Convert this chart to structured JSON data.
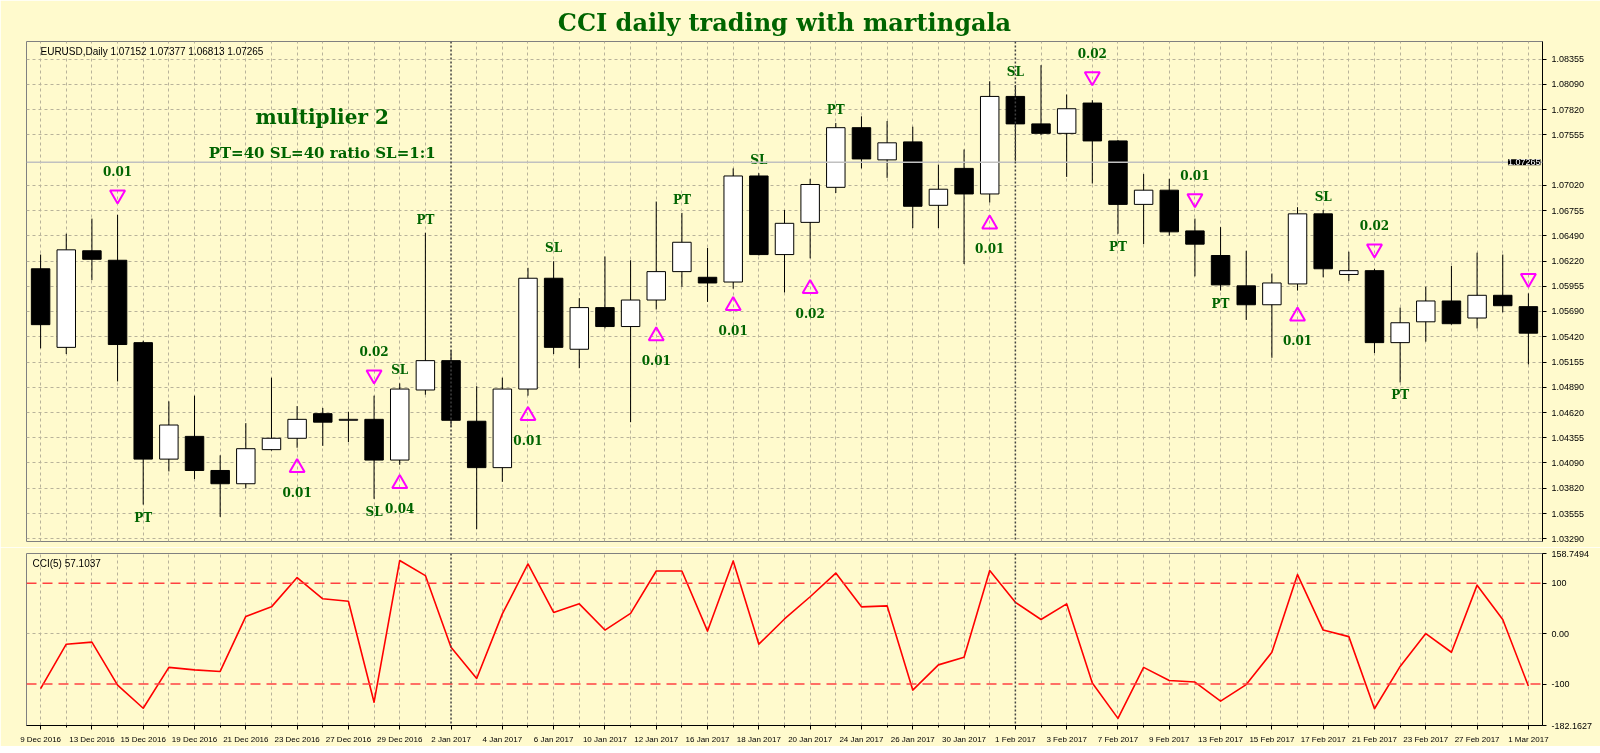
{
  "chart_data": [
    {
      "type": "candlestick",
      "title": "CCI daily trading with martingala",
      "subtitle": "EURUSD,Daily 1.07152 1.07377 1.06813 1.07265",
      "annotations": [
        "multiplier 2",
        "PT=40 SL=40 ratio SL=1:1",
        {
          "text": "0.01",
          "y": 1.0692
        },
        {
          "text": "0.01",
          "x": "23 Dec 2016",
          "y": 1.0404
        },
        {
          "text": "0.02",
          "y": 1.0502
        },
        {
          "text": "0.04",
          "x": "29 Dec 2016",
          "y": 1.0387
        },
        {
          "text": "0.01",
          "y": 1.0459
        },
        {
          "text": "0.01",
          "x": "12 Jan 2017",
          "y": 1.0543
        },
        {
          "text": "0.01",
          "y": 1.0575
        },
        {
          "text": "0.02",
          "x": "20 Jan 2017",
          "y": 1.0593
        },
        {
          "text": "0.01",
          "y": 1.0661
        },
        {
          "text": "0.02",
          "y": 1.0817
        },
        {
          "text": "0.01",
          "y": 1.0688
        },
        {
          "text": "0.01",
          "y": 1.0564
        },
        {
          "text": "0.02",
          "x": "21 Feb 2017",
          "y": 1.0635
        },
        {
          "text": "PT",
          "x": "15 Dec 2016",
          "y": 1.0365
        },
        {
          "text": "SL",
          "y": 1.0371
        },
        {
          "text": "SL",
          "x": "29 Dec 2016",
          "y": 1.0493
        },
        {
          "text": "PT",
          "y": 1.0652
        },
        {
          "text": "SL",
          "x": "6 Jan 2017",
          "y": 1.0622
        },
        {
          "text": "PT",
          "y": 1.0673
        },
        {
          "text": "SL",
          "x": "18 Jan 2017",
          "y": 1.0715
        },
        {
          "text": "PT",
          "y": 1.0768
        },
        {
          "text": "SL",
          "x": "1 Feb 2017",
          "y": 1.0808
        },
        {
          "text": "PT",
          "x": "7 Feb 2017",
          "y": 1.0651
        },
        {
          "text": "PT",
          "x": "13 Feb 2017",
          "y": 1.0591
        },
        {
          "text": "SL",
          "x": "17 Feb 2017",
          "y": 1.0676
        },
        {
          "text": "PT",
          "y": 1.0494
        }
      ],
      "categories": [
        "9 Dec 2016",
        null,
        "13 Dec 2016",
        null,
        "15 Dec 2016",
        null,
        "19 Dec 2016",
        null,
        "21 Dec 2016",
        null,
        "23 Dec 2016",
        null,
        "27 Dec 2016",
        null,
        "29 Dec 2016",
        null,
        "2 Jan 2017",
        null,
        "4 Jan 2017",
        null,
        "6 Jan 2017",
        null,
        "10 Jan 2017",
        null,
        "12 Jan 2017",
        null,
        "16 Jan 2017",
        null,
        "18 Jan 2017",
        null,
        "20 Jan 2017",
        null,
        "24 Jan 2017",
        null,
        "26 Jan 2017",
        null,
        "30 Jan 2017",
        null,
        "1 Feb 2017",
        null,
        "3 Feb 2017",
        null,
        "7 Feb 2017",
        null,
        "9 Feb 2017",
        null,
        "13 Feb 2017",
        null,
        "15 Feb 2017",
        null,
        "17 Feb 2017",
        null,
        "21 Feb 2017",
        null,
        "23 Feb 2017",
        null,
        "27 Feb 2017",
        null,
        "1 Mar 2017"
      ],
      "ohlc": [
        [
          1.0614,
          1.0629,
          1.053,
          1.0555
        ],
        [
          1.0531,
          1.0651,
          1.0524,
          1.0634
        ],
        [
          1.0633,
          1.0667,
          1.0602,
          1.0624
        ],
        [
          1.0623,
          1.0671,
          1.0495,
          1.0534
        ],
        [
          1.0536,
          1.0538,
          1.0365,
          1.0413
        ],
        [
          1.0413,
          1.0474,
          1.04,
          1.0449
        ],
        [
          1.0437,
          1.048,
          1.0392,
          1.0401
        ],
        [
          1.0401,
          1.0417,
          1.0352,
          1.0387
        ],
        [
          1.0387,
          1.0451,
          1.0382,
          1.0424
        ],
        [
          1.0423,
          1.0499,
          1.0422,
          1.0435
        ],
        [
          1.0435,
          1.0469,
          1.0425,
          1.0455
        ],
        [
          1.0461,
          1.0467,
          1.0427,
          1.0452
        ],
        [
          1.0454,
          1.0463,
          1.0431,
          1.0455
        ],
        [
          1.0455,
          1.048,
          1.0371,
          1.0412
        ],
        [
          1.0412,
          1.0493,
          1.0407,
          1.0487
        ],
        [
          1.0486,
          1.0652,
          1.0481,
          1.0517
        ],
        [
          1.0517,
          1.0528,
          1.0447,
          1.0454
        ],
        [
          1.0453,
          1.049,
          1.0339,
          1.0404
        ],
        [
          1.0404,
          1.0499,
          1.0389,
          1.0487
        ],
        [
          1.0487,
          1.0615,
          1.048,
          1.0604
        ],
        [
          1.0604,
          1.0622,
          1.0524,
          1.0531
        ],
        [
          1.0529,
          1.0583,
          1.0509,
          1.0573
        ],
        [
          1.0573,
          1.0627,
          1.0551,
          1.0553
        ],
        [
          1.0553,
          1.0623,
          1.0452,
          1.0581
        ],
        [
          1.0581,
          1.0685,
          1.0571,
          1.0611
        ],
        [
          1.0611,
          1.0673,
          1.0595,
          1.0642
        ],
        [
          1.0605,
          1.0636,
          1.0579,
          1.0599
        ],
        [
          1.06,
          1.072,
          1.0593,
          1.0712
        ],
        [
          1.0712,
          1.0715,
          1.0628,
          1.0629
        ],
        [
          1.0629,
          1.0676,
          1.0589,
          1.0662
        ],
        [
          1.0663,
          1.0709,
          1.0625,
          1.0703
        ],
        [
          1.07,
          1.0768,
          1.0694,
          1.0763
        ],
        [
          1.0763,
          1.0775,
          1.072,
          1.073
        ],
        [
          1.0729,
          1.077,
          1.071,
          1.0747
        ],
        [
          1.0748,
          1.0764,
          1.0657,
          1.068
        ],
        [
          1.0681,
          1.0724,
          1.0657,
          1.0698
        ],
        [
          1.072,
          1.074,
          1.0619,
          1.0693
        ],
        [
          1.0693,
          1.0812,
          1.0684,
          1.0796
        ],
        [
          1.0796,
          1.0808,
          1.0728,
          1.0767
        ],
        [
          1.0767,
          1.0829,
          1.0755,
          1.0757
        ],
        [
          1.0757,
          1.0798,
          1.0711,
          1.0783
        ],
        [
          1.0789,
          1.0792,
          1.0704,
          1.0749
        ],
        [
          1.0749,
          1.075,
          1.0651,
          1.0682
        ],
        [
          1.0682,
          1.0714,
          1.064,
          1.0697
        ],
        [
          1.0697,
          1.0709,
          1.0649,
          1.0653
        ],
        [
          1.0654,
          1.0667,
          1.0606,
          1.064
        ],
        [
          1.0628,
          1.0658,
          1.0591,
          1.0597
        ],
        [
          1.0596,
          1.0633,
          1.056,
          1.0576
        ],
        [
          1.0576,
          1.0609,
          1.052,
          1.0599
        ],
        [
          1.0598,
          1.0679,
          1.0591,
          1.0672
        ],
        [
          1.0672,
          1.0676,
          1.0605,
          1.0614
        ],
        [
          1.0608,
          1.0632,
          1.0601,
          1.0612
        ],
        [
          1.0612,
          1.0614,
          1.0525,
          1.0536
        ],
        [
          1.0536,
          1.0573,
          1.0494,
          1.0557
        ],
        [
          1.0558,
          1.0595,
          1.0537,
          1.058
        ],
        [
          1.058,
          1.0617,
          1.0555,
          1.0556
        ],
        [
          1.0562,
          1.0631,
          1.0551,
          1.0586
        ],
        [
          1.0586,
          1.0629,
          1.0568,
          1.0575
        ],
        [
          1.0574,
          1.0588,
          1.0513,
          1.0546
        ]
      ],
      "series": [
        {
          "type": "scatter",
          "color": "#ff00ff",
          "marker": "triangle",
          "values": [
            null,
            null,
            null,
            1.0692,
            null,
            null,
            null,
            null,
            null,
            null,
            1.0404,
            null,
            null,
            1.0502,
            1.0387,
            null,
            null,
            null,
            null,
            1.0459,
            null,
            null,
            null,
            null,
            1.0543,
            null,
            null,
            1.0575,
            null,
            null,
            1.0593,
            null,
            null,
            null,
            null,
            null,
            null,
            1.0661,
            null,
            null,
            null,
            1.0817,
            null,
            null,
            null,
            1.0688,
            null,
            null,
            null,
            1.0564,
            null,
            null,
            1.0635,
            null,
            null,
            null,
            null,
            null,
            1.0604
          ]
        }
      ],
      "ylim": [
        1.0326,
        1.0854
      ],
      "yticks": [
        1.08355,
        {
          "value": 1.0809,
          "label": "1.08090"
        },
        {
          "value": 1.0782,
          "label": "1.07820"
        },
        1.07555,
        {
          "value": 1.0702,
          "label": "1.07020"
        },
        1.06755,
        {
          "value": 1.0649,
          "label": "1.06490"
        },
        {
          "value": 1.0622,
          "label": "1.06220"
        },
        1.05955,
        {
          "value": 1.0569,
          "label": "1.05690"
        },
        {
          "value": 1.0542,
          "label": "1.05420"
        },
        1.05155,
        {
          "value": 1.0489,
          "label": "1.04890"
        },
        {
          "value": 1.0462,
          "label": "1.04620"
        },
        1.04355,
        {
          "value": 1.0409,
          "label": "1.04090"
        },
        {
          "value": 1.0382,
          "label": "1.03820"
        },
        1.03555,
        {
          "value": 1.0329,
          "label": "1.03290"
        }
      ],
      "ref_lines": [
        {
          "axis": "y",
          "value": 1.07265,
          "label": "1.07265",
          "color": "#c0c0c0"
        },
        {
          "axis": "x",
          "value": "2 Jan 2017",
          "color": "#404040",
          "line_style": "dotted"
        },
        {
          "axis": "x",
          "value": "1 Feb 2017",
          "color": "#414141",
          "line_style": "dotted"
        }
      ],
      "grid": true,
      "tick_labels": "y"
    },
    {
      "type": "line",
      "title": "CCI(5) 57.1037",
      "categories": [
        "9 Dec 2016",
        null,
        "13 Dec 2016",
        null,
        "15 Dec 2016",
        null,
        "19 Dec 2016",
        null,
        "21 Dec 2016",
        null,
        "23 Dec 2016",
        null,
        "27 Dec 2016",
        null,
        "29 Dec 2016",
        null,
        "2 Jan 2017",
        null,
        "4 Jan 2017",
        null,
        "6 Jan 2017",
        null,
        "10 Jan 2017",
        null,
        "12 Jan 2017",
        null,
        "16 Jan 2017",
        null,
        "18 Jan 2017",
        null,
        "20 Jan 2017",
        null,
        "24 Jan 2017",
        null,
        "26 Jan 2017",
        null,
        "30 Jan 2017",
        null,
        "1 Feb 2017",
        null,
        "3 Feb 2017",
        null,
        "7 Feb 2017",
        null,
        "9 Feb 2017",
        null,
        "13 Feb 2017",
        null,
        "15 Feb 2017",
        null,
        "17 Feb 2017",
        null,
        "21 Feb 2017",
        null,
        "23 Feb 2017",
        null,
        "27 Feb 2017",
        null,
        "1 Mar 2017"
      ],
      "series": [
        {
          "color": "#ff0000",
          "values": [
            -109,
            -21,
            -17,
            -102,
            -148,
            -67,
            -72,
            -75,
            34,
            53,
            111,
            69,
            64,
            -136,
            145,
            115,
            -27,
            -89,
            39,
            138,
            42,
            59,
            7,
            40,
            124,
            124,
            5,
            144,
            -21,
            29,
            73,
            120,
            53,
            55,
            -112,
            -62,
            -47,
            125,
            62,
            28,
            59,
            -98,
            -168,
            -67,
            -93,
            -96,
            -134,
            -101,
            -37,
            117,
            7,
            -6,
            -149,
            -65,
            0,
            -37,
            96,
            28,
            -104
          ]
        }
      ],
      "ylim": [
        -182.1627,
        158.7494
      ],
      "yticks": [
        158.7494,
        100,
        {
          "value": 0,
          "label": "0.00"
        },
        -100,
        -182.1627
      ],
      "ref_lines": [
        {
          "axis": "y",
          "value": 100,
          "color": "#ff4040",
          "line_style": "dashed"
        },
        {
          "axis": "y",
          "value": -100,
          "color": "#ff4141",
          "line_style": "dashed"
        },
        {
          "axis": "x",
          "value": "2 Jan 2017",
          "color": "#424242",
          "line_style": "dotted"
        },
        {
          "axis": "x",
          "value": "1 Feb 2017",
          "color": "#434343",
          "line_style": "dotted"
        }
      ],
      "grid": true
    }
  ]
}
